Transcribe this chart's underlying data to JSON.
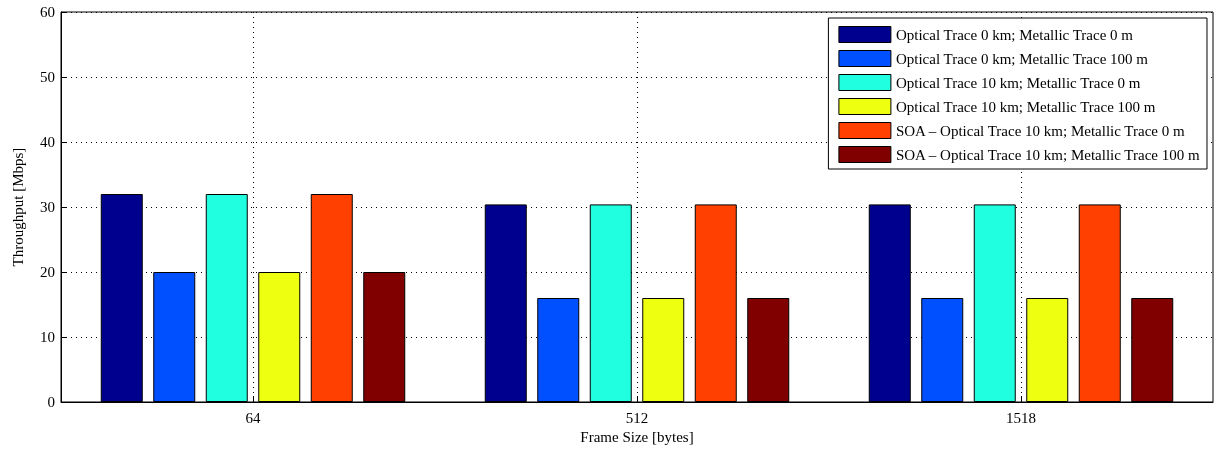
{
  "chart_data": {
    "type": "bar",
    "xlabel": "Frame Size [bytes]",
    "ylabel": "Throughput [Mbps]",
    "categories": [
      "64",
      "512",
      "1518"
    ],
    "series": [
      {
        "name": "Optical Trace 0 km; Metallic Trace 0 m",
        "color": "#00008f",
        "values": [
          32,
          30.4,
          30.4
        ]
      },
      {
        "name": "Optical Trace 0 km; Metallic Trace 100 m",
        "color": "#0050ff",
        "values": [
          20,
          16,
          16
        ]
      },
      {
        "name": "Optical Trace 10 km; Metallic Trace 0 m",
        "color": "#20ffdf",
        "values": [
          32,
          30.4,
          30.4
        ]
      },
      {
        "name": "Optical Trace 10 km; Metallic Trace 100 m",
        "color": "#efff10",
        "values": [
          20,
          16,
          16
        ]
      },
      {
        "name": "SOA – Optical Trace 10 km; Metallic Trace 0 m",
        "color": "#ff4000",
        "values": [
          32,
          30.4,
          30.4
        ]
      },
      {
        "name": "SOA – Optical Trace 10 km; Metallic Trace 100 m",
        "color": "#800000",
        "values": [
          20,
          16,
          16
        ]
      }
    ],
    "ylim": [
      0,
      60
    ],
    "yticks": [
      0,
      10,
      20,
      30,
      40,
      50,
      60
    ],
    "grid": true,
    "legend": "top right"
  }
}
